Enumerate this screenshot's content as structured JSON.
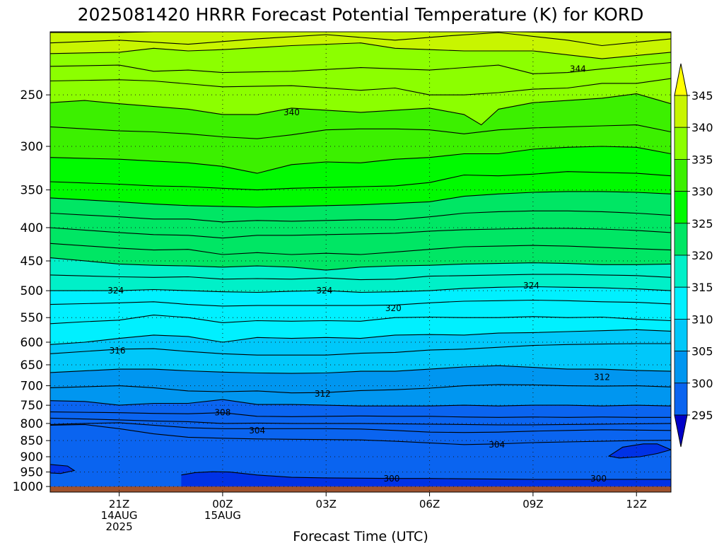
{
  "chart_data": {
    "type": "heatmap",
    "title": "2025081420 HRRR Forecast Potential Temperature (K) for KORD",
    "xlabel": "Forecast Time (UTC)",
    "ylabel": "",
    "y_axis": {
      "scale": "log",
      "reversed": true,
      "range": [
        200,
        1020
      ],
      "ticks": [
        250,
        300,
        350,
        400,
        450,
        500,
        550,
        600,
        650,
        700,
        750,
        800,
        850,
        900,
        950,
        1000
      ],
      "tick_labels": [
        "250",
        "300",
        "350",
        "400",
        "450",
        "500",
        "550",
        "600",
        "650",
        "700",
        "750",
        "800",
        "850",
        "900",
        "950",
        "1000"
      ]
    },
    "x_axis": {
      "range_hours": [
        -1,
        17
      ],
      "ticks": [
        {
          "hour": 1,
          "lines": [
            "21Z",
            "14AUG",
            "2025"
          ]
        },
        {
          "hour": 4,
          "lines": [
            "00Z",
            "15AUG"
          ]
        },
        {
          "hour": 7,
          "lines": [
            "03Z"
          ]
        },
        {
          "hour": 10,
          "lines": [
            "06Z"
          ]
        },
        {
          "hour": 13,
          "lines": [
            "09Z"
          ]
        },
        {
          "hour": 16,
          "lines": [
            "12Z"
          ]
        }
      ]
    },
    "grid": true,
    "colorbar": {
      "position": "right",
      "levels": [
        295,
        300,
        305,
        310,
        315,
        320,
        325,
        330,
        335,
        340,
        345
      ],
      "labels": [
        "295",
        "300",
        "305",
        "310",
        "315",
        "320",
        "325",
        "330",
        "335",
        "340",
        "345"
      ],
      "extend": "both",
      "colors": [
        "#0000c8",
        "#0032e6",
        "#0a64f0",
        "#0096f0",
        "#00c8fa",
        "#00f0ff",
        "#00f0c8",
        "#00e664",
        "#00fa00",
        "#3cf000",
        "#8cff00",
        "#c8f500",
        "#ffff00"
      ]
    },
    "ground_color": "#a0522d",
    "contour_labels": [
      {
        "value": "344",
        "hour": 14.3,
        "p": 228
      },
      {
        "value": "340",
        "hour": 6.0,
        "p": 266
      },
      {
        "value": "324",
        "hour": 0.9,
        "p": 500
      },
      {
        "value": "324",
        "hour": 6.95,
        "p": 500
      },
      {
        "value": "324",
        "hour": 12.95,
        "p": 491
      },
      {
        "value": "320",
        "hour": 8.95,
        "p": 532
      },
      {
        "value": "316",
        "hour": 0.95,
        "p": 618
      },
      {
        "value": "312",
        "hour": 6.9,
        "p": 720
      },
      {
        "value": "312",
        "hour": 15.0,
        "p": 679
      },
      {
        "value": "308",
        "hour": 4.0,
        "p": 770
      },
      {
        "value": "304",
        "hour": 5.0,
        "p": 820
      },
      {
        "value": "304",
        "hour": 11.95,
        "p": 862
      },
      {
        "value": "300",
        "hour": 8.9,
        "p": 973
      },
      {
        "value": "300",
        "hour": 14.9,
        "p": 973
      }
    ],
    "contour_lines": [
      {
        "x": [
          -1,
          1,
          2,
          4,
          6,
          8,
          10,
          12,
          14,
          17
        ],
        "p": [
          200.5,
          200.5,
          200,
          199.5,
          199.5,
          199,
          200,
          199.8,
          200.5,
          200.5
        ]
      },
      {
        "x": [
          -1,
          1,
          3,
          5,
          7,
          9,
          10.5,
          12,
          14,
          15,
          17
        ],
        "p": [
          208,
          206,
          209,
          205,
          202,
          206,
          203,
          200.5,
          206,
          210,
          205
        ]
      },
      {
        "x": [
          -1,
          1,
          2,
          3,
          4,
          6,
          8,
          9,
          10,
          11,
          13,
          15,
          17
        ],
        "p": [
          216,
          215,
          212,
          214,
          213,
          210,
          208,
          212,
          213,
          214,
          214,
          220,
          215
        ]
      },
      {
        "x": [
          -1,
          1,
          2,
          3,
          4,
          6,
          8,
          10,
          12,
          13,
          14,
          15,
          17
        ],
        "p": [
          226,
          225,
          230,
          229,
          231,
          230,
          227,
          229,
          225,
          232,
          231,
          228,
          223
        ]
      },
      {
        "x": [
          -1,
          1,
          2,
          4,
          6,
          8,
          9,
          10,
          11,
          12,
          13,
          14,
          15,
          16,
          17
        ],
        "p": [
          238,
          237,
          238,
          243,
          242,
          246,
          244,
          250,
          250,
          248,
          245,
          244,
          240,
          240,
          236
        ]
      },
      {
        "x": [
          -1,
          0,
          1,
          3,
          4,
          5,
          6,
          8,
          9,
          10,
          11,
          11.5,
          12,
          13,
          14,
          15,
          16,
          17
        ],
        "p": [
          257,
          255,
          258,
          263,
          268,
          268,
          262,
          266,
          264,
          262,
          268,
          278,
          263,
          257,
          255,
          253,
          249,
          258
        ]
      },
      {
        "x": [
          -1,
          1,
          2,
          3,
          4,
          5,
          6,
          7,
          8,
          9,
          10,
          11,
          12,
          13,
          14,
          15,
          16,
          17
        ],
        "p": [
          280,
          284,
          285,
          287,
          290,
          292,
          288,
          283,
          282,
          282,
          283,
          287,
          283,
          281,
          280,
          279,
          278,
          285
        ]
      },
      {
        "x": [
          -1,
          1,
          2,
          3,
          4,
          5,
          6,
          7,
          8,
          9,
          10,
          11,
          12,
          13,
          14,
          15,
          16,
          17
        ],
        "p": [
          312,
          314,
          316,
          318,
          322,
          330,
          320,
          317,
          318,
          314,
          312,
          308,
          308,
          303,
          301,
          300,
          301,
          308
        ]
      },
      {
        "x": [
          -1,
          1,
          2,
          3,
          4,
          5,
          6,
          7,
          8,
          9,
          10,
          11,
          12,
          13,
          14,
          15,
          16,
          17
        ],
        "p": [
          340,
          343,
          345,
          346,
          348,
          350,
          348,
          347,
          346,
          345,
          341,
          332,
          333,
          331,
          328,
          329,
          330,
          333
        ]
      },
      {
        "x": [
          -1,
          1,
          2,
          3,
          4,
          5,
          6,
          7,
          8,
          9,
          10,
          11,
          12,
          13,
          14,
          15,
          16,
          17
        ],
        "p": [
          360,
          365,
          368,
          370,
          371,
          372,
          371,
          370,
          369,
          367,
          365,
          358,
          355,
          353,
          352,
          352,
          353,
          355
        ]
      },
      {
        "x": [
          -1,
          1,
          2,
          3,
          4,
          5,
          6,
          7,
          8,
          9,
          10,
          11,
          12,
          13,
          14,
          15,
          16,
          17
        ],
        "p": [
          380,
          385,
          388,
          388,
          392,
          390,
          391,
          390,
          389,
          389,
          385,
          380,
          378,
          377,
          377,
          378,
          380,
          383
        ]
      },
      {
        "x": [
          -1,
          1,
          2,
          3,
          4,
          5,
          6,
          7,
          8,
          9,
          10,
          11,
          12,
          13,
          14,
          15,
          16,
          17
        ],
        "p": [
          400,
          407,
          410,
          411,
          415,
          411,
          411,
          410,
          409,
          408,
          405,
          403,
          402,
          401,
          401,
          402,
          404,
          407
        ]
      },
      {
        "x": [
          -1,
          1,
          2,
          3,
          4,
          5,
          6,
          7,
          8,
          9,
          10,
          11,
          12,
          13,
          14,
          15,
          16,
          17
        ],
        "p": [
          423,
          430,
          433,
          432,
          440,
          437,
          440,
          438,
          440,
          436,
          432,
          428,
          427,
          426,
          427,
          429,
          431,
          433
        ]
      },
      {
        "x": [
          -1,
          1,
          2,
          3,
          4,
          5,
          6,
          7,
          8,
          9,
          10,
          11,
          12,
          13,
          14,
          15,
          16,
          17
        ],
        "p": [
          445,
          455,
          457,
          458,
          460,
          458,
          460,
          465,
          460,
          458,
          457,
          455,
          454,
          453,
          454,
          456,
          456,
          455
        ]
      },
      {
        "x": [
          -1,
          1,
          2,
          3,
          4,
          5,
          6,
          7,
          8,
          9,
          10,
          11,
          12,
          13,
          14,
          15,
          16,
          17
        ],
        "p": [
          473,
          476,
          477,
          476,
          480,
          479,
          480,
          478,
          481,
          480,
          475,
          474,
          473,
          472,
          472,
          473,
          474,
          477
        ]
      },
      {
        "x": [
          -1,
          1,
          2,
          3,
          4,
          5,
          6,
          7,
          8,
          9,
          10,
          11,
          12,
          13,
          14,
          15,
          16,
          17
        ],
        "p": [
          500,
          500,
          498,
          500,
          502,
          503,
          501,
          500,
          503,
          502,
          500,
          496,
          494,
          493,
          494,
          495,
          497,
          500
        ]
      },
      {
        "x": [
          -1,
          1,
          2,
          3,
          4,
          5,
          6,
          7,
          8,
          9,
          10,
          11,
          12,
          13,
          14,
          15,
          16,
          17
        ],
        "p": [
          525,
          522,
          520,
          525,
          528,
          527,
          527,
          527,
          527,
          526,
          522,
          519,
          518,
          517,
          518,
          520,
          521,
          524
        ]
      },
      {
        "x": [
          -1,
          0,
          1,
          2,
          3,
          4,
          5,
          6,
          7,
          8,
          9,
          10,
          11,
          12,
          13,
          14,
          15,
          16,
          17
        ],
        "p": [
          562,
          558,
          555,
          545,
          550,
          560,
          556,
          557,
          556,
          557,
          550,
          549,
          550,
          550,
          548,
          550,
          549,
          553,
          556
        ]
      },
      {
        "x": [
          -1,
          0,
          1,
          2,
          3,
          4,
          5,
          6,
          7,
          8,
          9,
          10,
          11,
          12,
          13,
          14,
          15,
          16,
          17
        ],
        "p": [
          605,
          600,
          592,
          585,
          588,
          600,
          590,
          592,
          590,
          592,
          585,
          584,
          585,
          581,
          580,
          578,
          576,
          574,
          577
        ]
      },
      {
        "x": [
          -1,
          1,
          2,
          3,
          4,
          5,
          6,
          7,
          8,
          9,
          10,
          11,
          12,
          13,
          14,
          15,
          16,
          17
        ],
        "p": [
          625,
          615,
          614,
          620,
          625,
          628,
          628,
          628,
          624,
          622,
          617,
          615,
          611,
          607,
          605,
          604,
          603,
          603
        ]
      },
      {
        "x": [
          -1,
          1,
          2,
          3,
          4,
          5,
          6,
          7,
          8,
          9,
          10,
          11,
          12,
          13,
          14,
          15,
          16,
          17
        ],
        "p": [
          668,
          660,
          660,
          664,
          667,
          669,
          670,
          669,
          665,
          665,
          660,
          655,
          652,
          656,
          660,
          660,
          663,
          665
        ]
      },
      {
        "x": [
          -1,
          1,
          2,
          3,
          4,
          5,
          6,
          7,
          8,
          9,
          10,
          11,
          12,
          13,
          14,
          15,
          16,
          17
        ],
        "p": [
          705,
          700,
          705,
          713,
          715,
          713,
          718,
          717,
          712,
          710,
          706,
          700,
          697,
          698,
          700,
          701,
          700,
          703
        ]
      },
      {
        "x": [
          -1,
          0,
          1,
          2,
          3,
          4,
          5,
          6,
          7,
          8,
          9,
          10,
          11,
          12,
          13,
          14,
          15,
          16,
          17
        ],
        "p": [
          738,
          740,
          750,
          745,
          745,
          735,
          748,
          748,
          750,
          752,
          752,
          752,
          750,
          752,
          750,
          750,
          752,
          750,
          752
        ]
      },
      {
        "x": [
          -1,
          1,
          2,
          3,
          4,
          5,
          6,
          7,
          8,
          9,
          10,
          11,
          12,
          13,
          14,
          15,
          16,
          17
        ],
        "p": [
          768,
          770,
          772,
          773,
          770,
          780,
          781,
          780,
          779,
          780,
          780,
          782,
          783,
          782,
          783,
          782,
          783,
          783
        ]
      },
      {
        "x": [
          -1,
          1,
          2,
          3,
          4,
          5,
          6,
          7,
          8,
          9,
          10,
          11,
          12,
          13,
          14,
          15,
          16,
          17
        ],
        "p": [
          785,
          790,
          793,
          795,
          800,
          799,
          800,
          800,
          800,
          801,
          802,
          803,
          804,
          804,
          803,
          802,
          801,
          800
        ]
      },
      {
        "x": [
          -1,
          0,
          1,
          2,
          3,
          4,
          5,
          6,
          7,
          8,
          9,
          10,
          11,
          12,
          13,
          14,
          15,
          16,
          17
        ],
        "p": [
          803,
          800,
          798,
          805,
          812,
          815,
          815,
          815,
          815,
          816,
          820,
          825,
          826,
          825,
          822,
          820,
          818,
          819,
          820
        ]
      },
      {
        "x": [
          -1,
          0,
          1,
          2,
          3,
          4,
          5,
          6,
          7,
          8,
          9,
          10,
          11,
          12,
          13,
          14,
          15,
          16,
          17
        ],
        "p": [
          805,
          803,
          815,
          830,
          840,
          843,
          845,
          846,
          847,
          848,
          852,
          857,
          862,
          860,
          856,
          854,
          852,
          850,
          849
        ]
      },
      {
        "x": [
          15.2,
          15.6,
          16.2,
          16.6,
          17,
          16.6,
          16.1,
          15.5,
          15.2
        ],
        "p": [
          898,
          870,
          860,
          860,
          878,
          890,
          900,
          904,
          898
        ]
      },
      {
        "x": [
          -1,
          -0.5,
          -0.3,
          -0.7,
          -1
        ],
        "p": [
          925,
          930,
          945,
          955,
          953
        ]
      },
      {
        "x": [
          2.8,
          3.2,
          3.7,
          4.2,
          5,
          6,
          7,
          8,
          9,
          10,
          11,
          12,
          13,
          14,
          15,
          16,
          17
        ],
        "p": [
          960,
          952,
          949,
          950,
          960,
          968,
          970,
          971,
          972,
          972,
          973,
          974,
          975,
          975,
          975,
          975,
          975
        ]
      }
    ]
  }
}
